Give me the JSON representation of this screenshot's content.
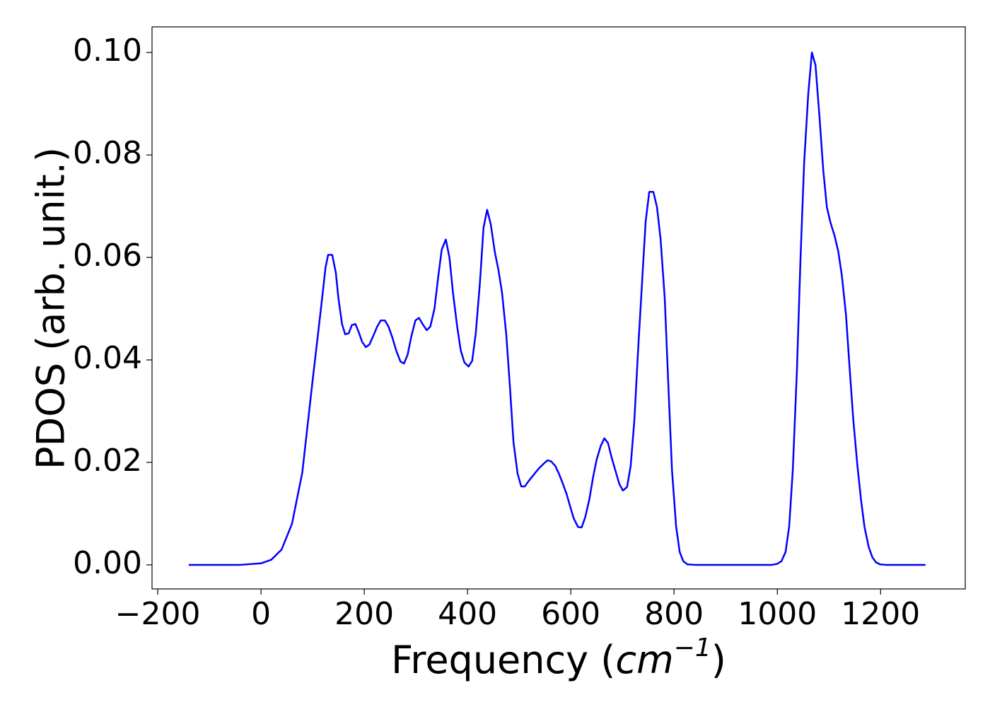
{
  "chart_data": {
    "type": "line",
    "xlabel_parts": [
      "Frequency (",
      "cm",
      "−1",
      ")"
    ],
    "ylabel": "PDOS (arb. unit.)",
    "xlim": [
      -211,
      1364
    ],
    "ylim": [
      -0.0047,
      0.105
    ],
    "xticks": [
      {
        "value": -200,
        "label": "−200"
      },
      0,
      200,
      400,
      600,
      800,
      1000,
      1200
    ],
    "yticks": [
      {
        "value": 0,
        "label": "0.00"
      },
      {
        "value": 0.02,
        "label": "0.02"
      },
      {
        "value": 0.04,
        "label": "0.04"
      },
      {
        "value": 0.06,
        "label": "0.06"
      },
      {
        "value": 0.08,
        "label": "0.08"
      },
      {
        "value": 0.1,
        "label": "0.10"
      }
    ],
    "series": [
      {
        "color": "#0000ff",
        "x": [
          -140,
          -40,
          0,
          20,
          40,
          60,
          80,
          100,
          115,
          125,
          130,
          138,
          145,
          150,
          157,
          163,
          170,
          176,
          183,
          189,
          196,
          203,
          210,
          218,
          225,
          232,
          240,
          247,
          254,
          262,
          270,
          277,
          284,
          291,
          299,
          306,
          313,
          321,
          328,
          336,
          343,
          350,
          358,
          365,
          372,
          380,
          387,
          394,
          402,
          409,
          416,
          424,
          431,
          438,
          445,
          453,
          460,
          467,
          475,
          482,
          489,
          497,
          504,
          511,
          518,
          526,
          533,
          540,
          548,
          555,
          562,
          570,
          577,
          584,
          592,
          599,
          606,
          614,
          621,
          628,
          636,
          643,
          650,
          658,
          665,
          672,
          679,
          687,
          694,
          701,
          709,
          716,
          723,
          731,
          738,
          745,
          752,
          760,
          767,
          774,
          782,
          789,
          796,
          804,
          811,
          818,
          826,
          840,
          990,
          1000,
          1008,
          1016,
          1023,
          1030,
          1038,
          1045,
          1052,
          1060,
          1067,
          1074,
          1082,
          1089,
          1096,
          1103,
          1111,
          1118,
          1125,
          1133,
          1140,
          1147,
          1155,
          1162,
          1169,
          1177,
          1184,
          1191,
          1199,
          1210,
          1287
        ],
        "values": [
          0,
          0,
          0.0003,
          0.001,
          0.003,
          0.008,
          0.018,
          0.036,
          0.049,
          0.058,
          0.0605,
          0.0605,
          0.057,
          0.052,
          0.047,
          0.045,
          0.0452,
          0.0468,
          0.047,
          0.0455,
          0.0435,
          0.0425,
          0.043,
          0.0448,
          0.0465,
          0.0477,
          0.0477,
          0.0465,
          0.0445,
          0.0418,
          0.0397,
          0.0393,
          0.041,
          0.0445,
          0.0477,
          0.0482,
          0.047,
          0.0458,
          0.0465,
          0.05,
          0.056,
          0.0615,
          0.0635,
          0.06,
          0.053,
          0.0465,
          0.0418,
          0.0395,
          0.0387,
          0.0398,
          0.0452,
          0.055,
          0.0658,
          0.0693,
          0.0665,
          0.061,
          0.0575,
          0.053,
          0.045,
          0.035,
          0.024,
          0.0178,
          0.0153,
          0.0153,
          0.0163,
          0.0173,
          0.0182,
          0.019,
          0.0198,
          0.0204,
          0.0202,
          0.0193,
          0.0178,
          0.016,
          0.0138,
          0.0113,
          0.009,
          0.0074,
          0.0073,
          0.0093,
          0.0128,
          0.017,
          0.0205,
          0.0232,
          0.0247,
          0.0238,
          0.021,
          0.0182,
          0.0158,
          0.0145,
          0.0152,
          0.0193,
          0.028,
          0.043,
          0.055,
          0.067,
          0.0728,
          0.0728,
          0.0698,
          0.0635,
          0.052,
          0.035,
          0.0185,
          0.0075,
          0.0025,
          0.0007,
          0.0001,
          0,
          0,
          0.0002,
          0.0007,
          0.0025,
          0.0075,
          0.0185,
          0.038,
          0.06,
          0.0785,
          0.092,
          0.1,
          0.0975,
          0.087,
          0.077,
          0.0698,
          0.0668,
          0.0642,
          0.0612,
          0.0565,
          0.0488,
          0.0385,
          0.0285,
          0.0195,
          0.0128,
          0.0073,
          0.0035,
          0.0015,
          0.0005,
          0.0001,
          0,
          0
        ]
      }
    ]
  }
}
